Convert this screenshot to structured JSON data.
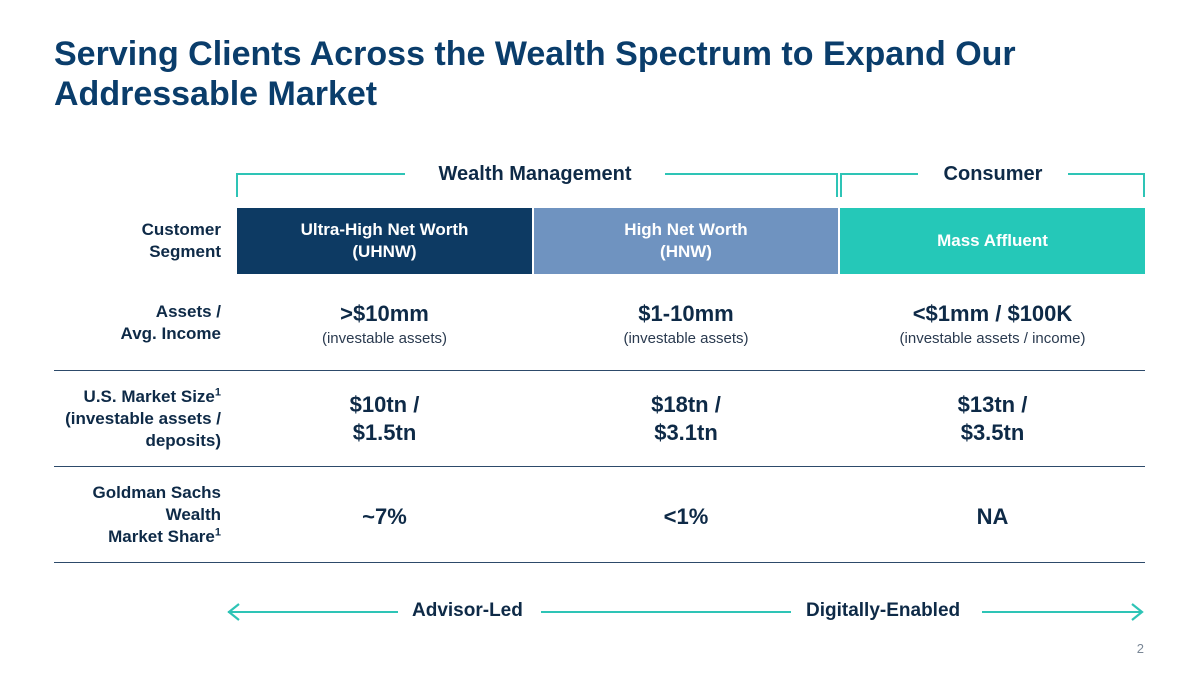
{
  "title": "Serving Clients Across the Wealth Spectrum to Expand Our Addressable Market",
  "groups": {
    "wealth_management": "Wealth Management",
    "consumer": "Consumer"
  },
  "row_labels": {
    "segment_line1": "Customer",
    "segment_line2": "Segment",
    "assets_line1": "Assets /",
    "assets_line2": "Avg. Income",
    "market_size_line1": "U.S. Market Size",
    "market_size_line2": "(investable assets /",
    "market_size_line3": "deposits)",
    "share_line1": "Goldman Sachs",
    "share_line2": "Wealth",
    "share_line3": "Market Share",
    "footnote_mark": "1"
  },
  "segments": [
    {
      "line1": "Ultra-High Net Worth",
      "line2": "(UHNW)",
      "color": "#0d3a63"
    },
    {
      "line1": "High Net Worth",
      "line2": "(HNW)",
      "color": "#6f93c0"
    },
    {
      "line1": "Mass Affluent",
      "line2": "",
      "color": "#25c8b8"
    }
  ],
  "assets": [
    {
      "value": ">$10mm",
      "note": "(investable assets)"
    },
    {
      "value": "$1-10mm",
      "note": "(investable assets)"
    },
    {
      "value": "<$1mm / $100K",
      "note": "(investable assets / income)"
    }
  ],
  "market_size": [
    {
      "line1": "$10tn /",
      "line2": "$1.5tn"
    },
    {
      "line1": "$18tn /",
      "line2": "$3.1tn"
    },
    {
      "line1": "$13tn /",
      "line2": "$3.5tn"
    }
  ],
  "market_share": [
    "~7%",
    "<1%",
    "NA"
  ],
  "spectrum": {
    "left_label": "Advisor-Led",
    "right_label": "Digitally-Enabled",
    "accent": "#2ec4b6"
  },
  "page_number": "2"
}
